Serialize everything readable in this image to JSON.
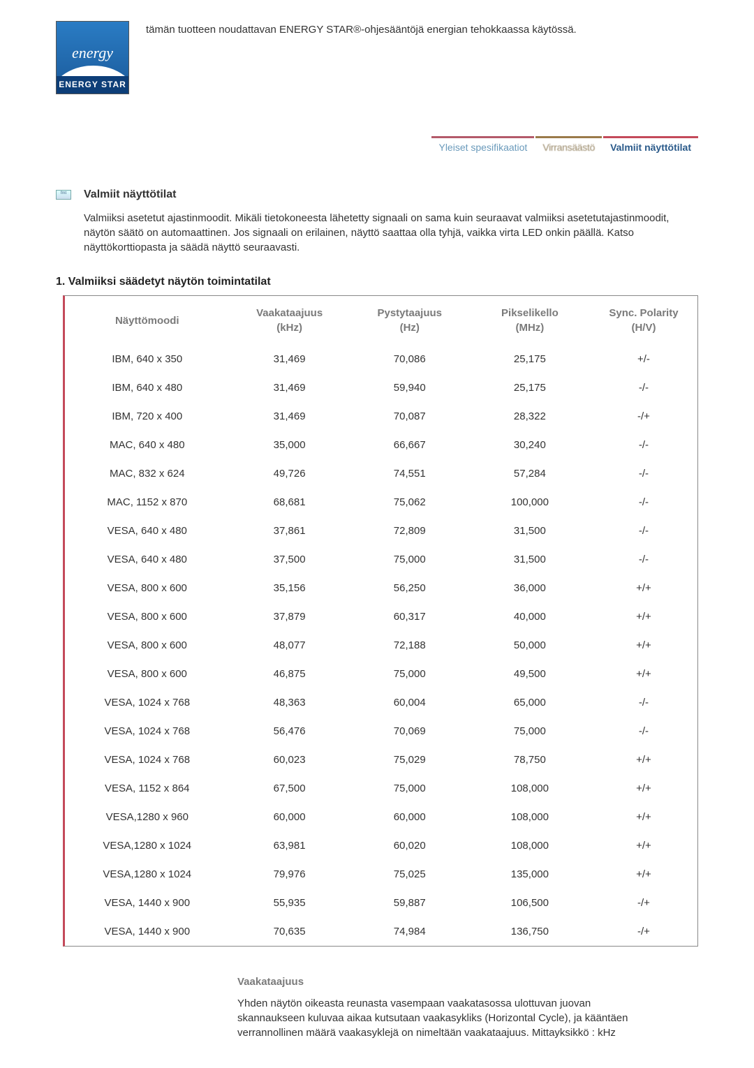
{
  "header": {
    "logo_script": "energy",
    "logo_bar": "ENERGY STAR",
    "top_text": "tämän tuotteen noudattavan ENERGY STAR®-ohjesääntöjä energian tehokkaassa käytössä."
  },
  "tabs": {
    "t1": "Yleiset spesifikaatiot",
    "t2": "Virransäästö",
    "t3": "Valmiit näyttötilat"
  },
  "section": {
    "icon_text": "fmt",
    "heading": "Valmiit näyttötilat",
    "body": "Valmiiksi asetetut ajastinmoodit. Mikäli tietokoneesta lähetetty signaali on sama kuin seuraavat valmiiksi asetetutajastinmoodit, näytön säätö on automaattinen. Jos signaali on erilainen, näyttö saattaa olla tyhjä, vaikka virta LED onkin päällä. Katso näyttökorttiopasta ja säädä näyttö seuraavasti."
  },
  "table": {
    "title": "1. Valmiiksi säädetyt näytön toimintatilat",
    "columns": [
      "Näyttömoodi",
      "Vaakataajuus\n(kHz)",
      "Pystytaajuus\n(Hz)",
      "Pikselikello\n(MHz)",
      "Sync. Polarity\n(H/V)"
    ],
    "rows": [
      [
        "IBM, 640 x 350",
        "31,469",
        "70,086",
        "25,175",
        "+/-"
      ],
      [
        "IBM, 640 x 480",
        "31,469",
        "59,940",
        "25,175",
        "-/-"
      ],
      [
        "IBM, 720 x 400",
        "31,469",
        "70,087",
        "28,322",
        "-/+"
      ],
      [
        "MAC, 640 x 480",
        "35,000",
        "66,667",
        "30,240",
        "-/-"
      ],
      [
        "MAC, 832 x 624",
        "49,726",
        "74,551",
        "57,284",
        "-/-"
      ],
      [
        "MAC, 1152 x 870",
        "68,681",
        "75,062",
        "100,000",
        "-/-"
      ],
      [
        "VESA, 640 x 480",
        "37,861",
        "72,809",
        "31,500",
        "-/-"
      ],
      [
        "VESA, 640 x 480",
        "37,500",
        "75,000",
        "31,500",
        "-/-"
      ],
      [
        "VESA, 800 x 600",
        "35,156",
        "56,250",
        "36,000",
        "+/+"
      ],
      [
        "VESA, 800 x 600",
        "37,879",
        "60,317",
        "40,000",
        "+/+"
      ],
      [
        "VESA, 800 x 600",
        "48,077",
        "72,188",
        "50,000",
        "+/+"
      ],
      [
        "VESA, 800 x 600",
        "46,875",
        "75,000",
        "49,500",
        "+/+"
      ],
      [
        "VESA, 1024 x 768",
        "48,363",
        "60,004",
        "65,000",
        "-/-"
      ],
      [
        "VESA, 1024 x 768",
        "56,476",
        "70,069",
        "75,000",
        "-/-"
      ],
      [
        "VESA, 1024 x 768",
        "60,023",
        "75,029",
        "78,750",
        "+/+"
      ],
      [
        "VESA, 1152 x 864",
        "67,500",
        "75,000",
        "108,000",
        "+/+"
      ],
      [
        "VESA,1280 x 960",
        "60,000",
        "60,000",
        "108,000",
        "+/+"
      ],
      [
        "VESA,1280 x 1024",
        "63,981",
        "60,020",
        "108,000",
        "+/+"
      ],
      [
        "VESA,1280 x 1024",
        "79,976",
        "75,025",
        "135,000",
        "+/+"
      ],
      [
        "VESA, 1440 x 900",
        "55,935",
        "59,887",
        "106,500",
        "-/+"
      ],
      [
        "VESA, 1440 x 900",
        "70,635",
        "74,984",
        "136,750",
        "-/+"
      ]
    ],
    "col_widths": [
      "26%",
      "19%",
      "19%",
      "19%",
      "17%"
    ]
  },
  "footer": {
    "heading": "Vaakataajuus",
    "text": "Yhden näytön oikeasta reunasta vasempaan vaakatasossa ulottuvan juovan skannaukseen kuluvaa aikaa kutsutaan vaakasykliks (Horizontal Cycle), ja kääntäen verrannollinen määrä vaakasyklejä on nimeltään vaakataajuus. Mittayksikkö : kHz"
  }
}
